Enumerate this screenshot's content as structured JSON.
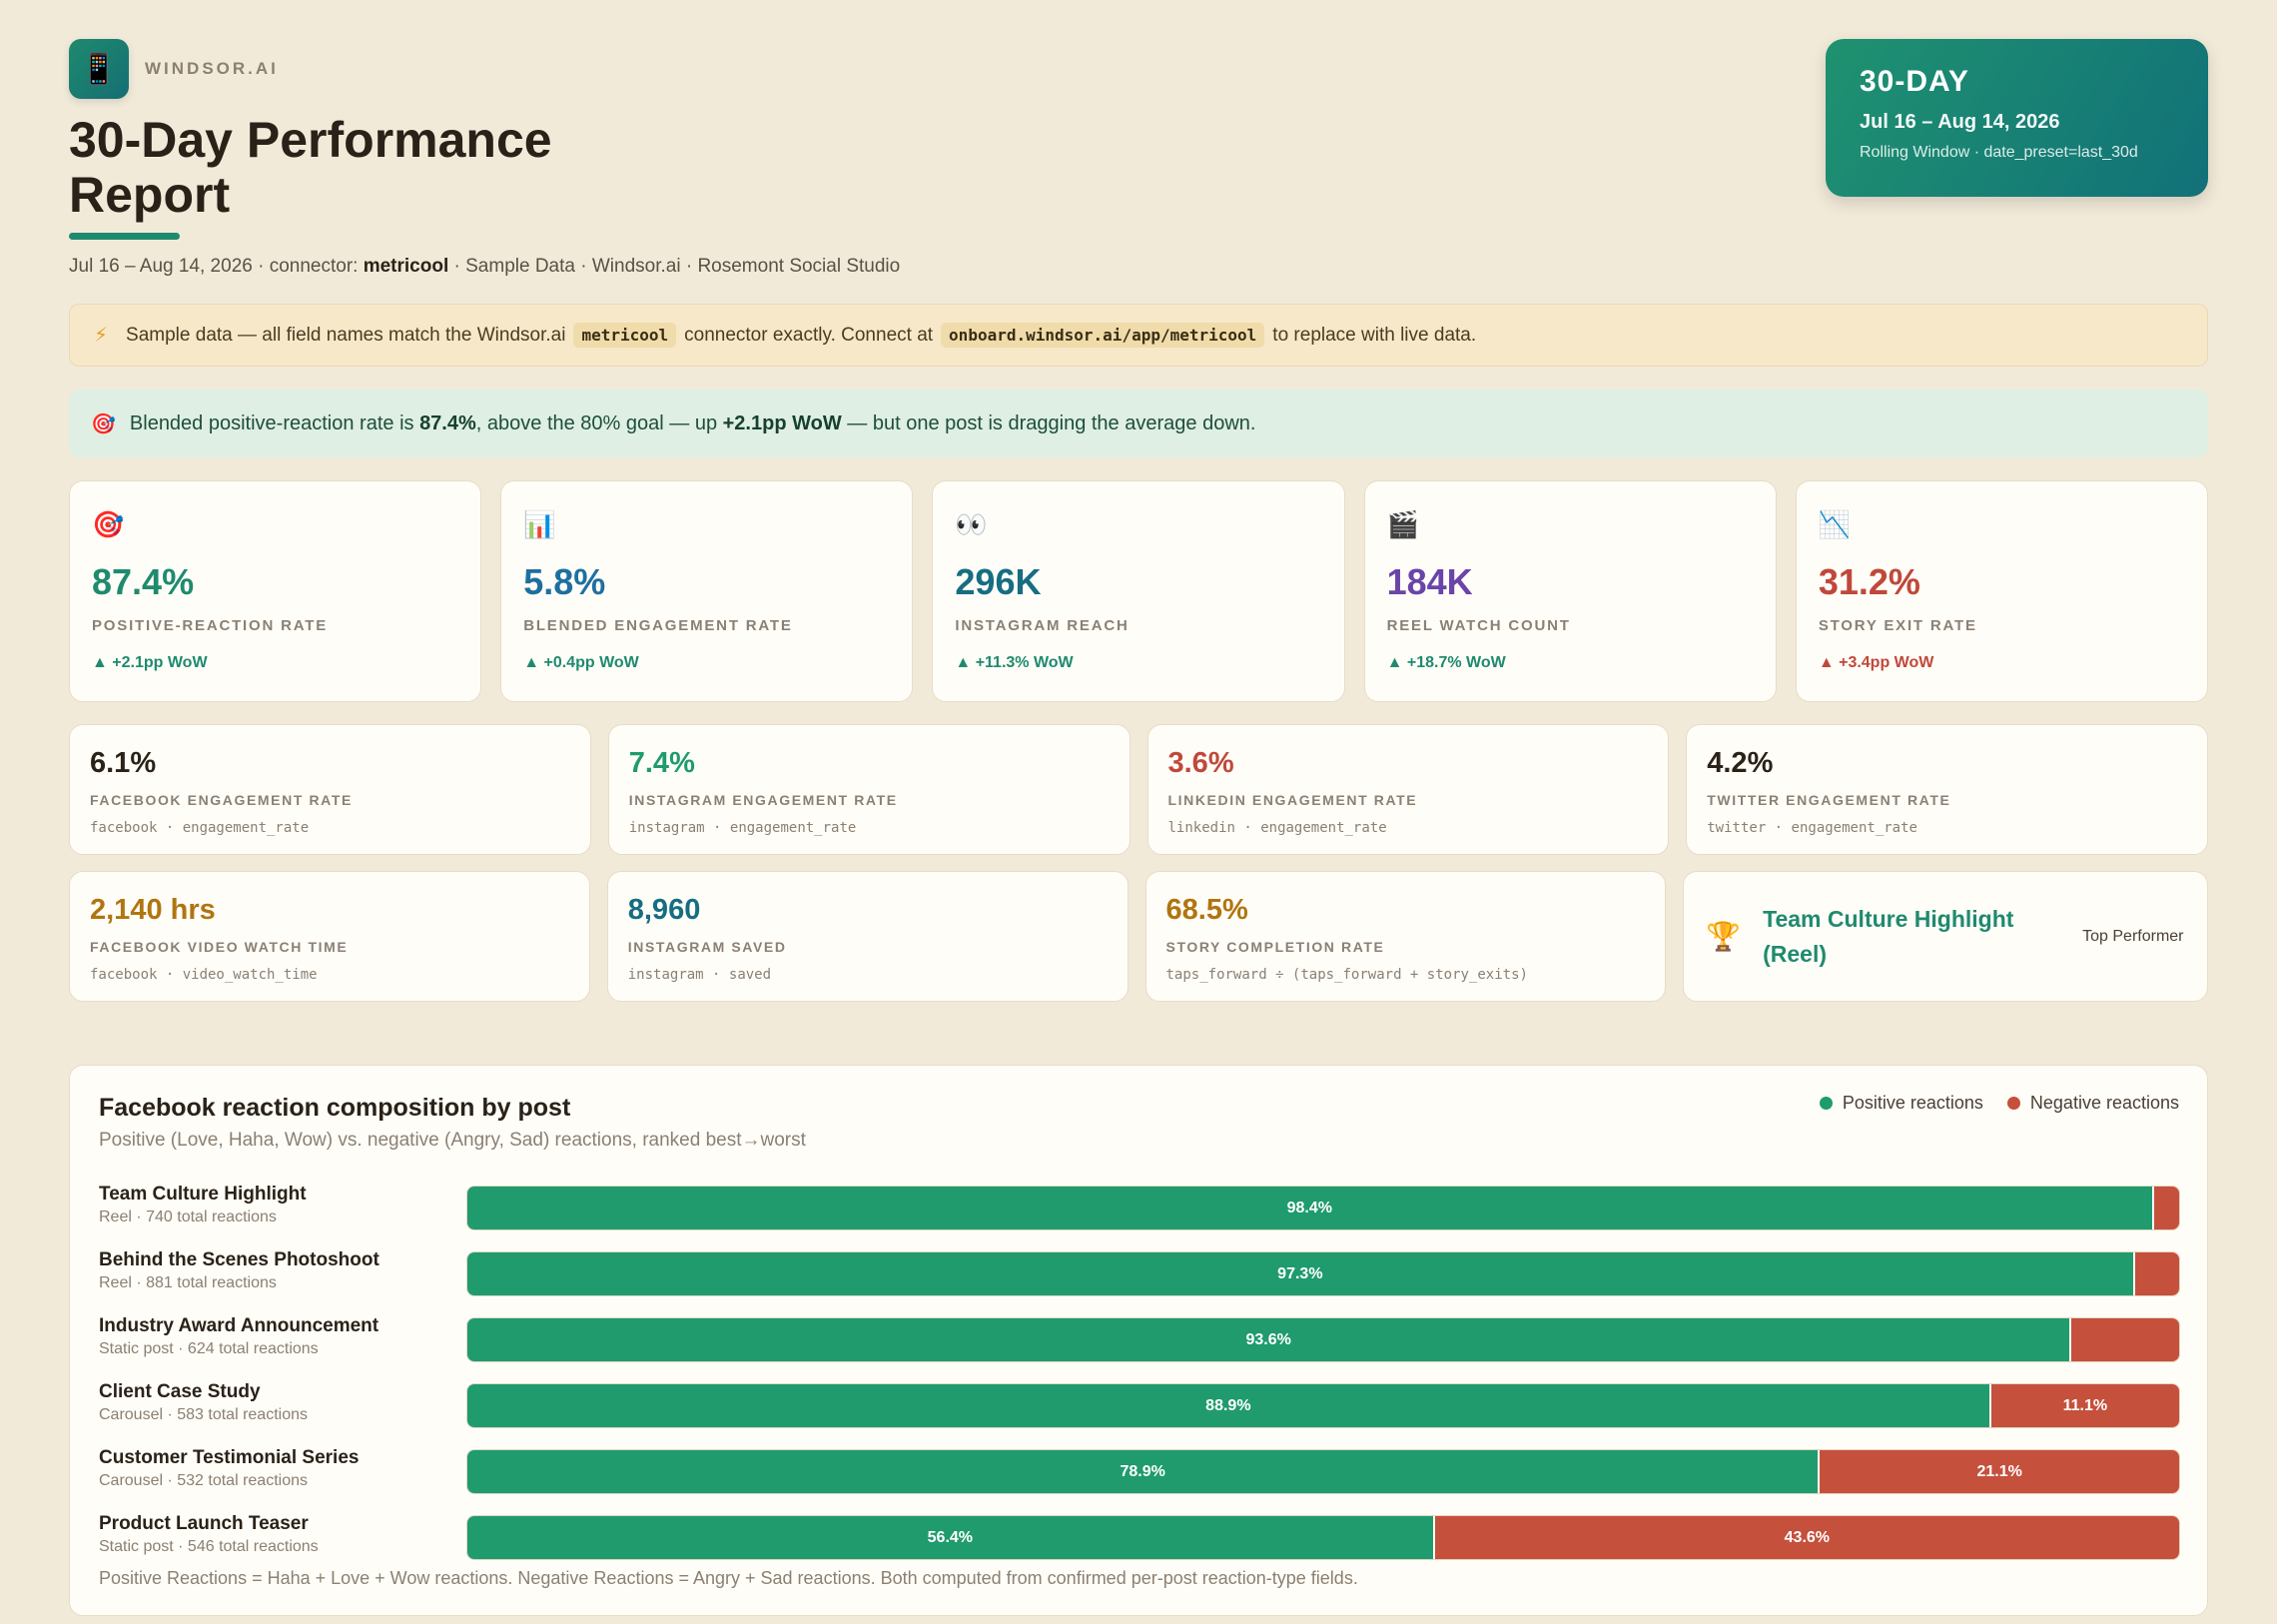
{
  "brand": {
    "name": "WINDSOR.AI",
    "logo_icon": "📱"
  },
  "header": {
    "title": "30-Day Performance Report",
    "subtitle_range": "Jul 16 – Aug 14, 2026",
    "subtitle_connector_label": " · connector: ",
    "subtitle_connector": "metricool",
    "subtitle_rest": " · Sample Data · Windsor.ai · Rosemont Social Studio"
  },
  "window_card": {
    "label": "30-DAY",
    "range": "Jul 16 – Aug 14, 2026",
    "meta": "Rolling Window · date_preset=last_30d"
  },
  "notice": {
    "icon": "⚡",
    "text_1": "Sample data — all field names match the Windsor.ai",
    "code_1": "metricool",
    "text_2": "connector exactly. Connect at",
    "code_2": "onboard.windsor.ai/app/metricool",
    "text_3": "to replace with live data."
  },
  "insight": {
    "icon": "🎯",
    "text_1": "Blended positive-reaction rate is ",
    "bold_1": "87.4%",
    "text_2": ", above the 80% goal — up ",
    "bold_2": "+2.1pp WoW",
    "text_3": " — but one post is dragging the average down."
  },
  "kpis": [
    {
      "icon": "🎯",
      "value": "87.4%",
      "label": "POSITIVE-REACTION RATE",
      "delta": "▲ +2.1pp WoW",
      "color": "#1f8a6e",
      "delta_color": "#1f8a6e"
    },
    {
      "icon": "📊",
      "value": "5.8%",
      "label": "BLENDED ENGAGEMENT RATE",
      "delta": "▲ +0.4pp WoW",
      "color": "#1e6fa0",
      "delta_color": "#1f8a6e"
    },
    {
      "icon": "👀",
      "value": "296K",
      "label": "INSTAGRAM REACH",
      "delta": "▲ +11.3% WoW",
      "color": "#176d82",
      "delta_color": "#1f8a6e"
    },
    {
      "icon": "🎬",
      "value": "184K",
      "label": "REEL WATCH COUNT",
      "delta": "▲ +18.7% WoW",
      "color": "#6a44a8",
      "delta_color": "#1f8a6e"
    },
    {
      "icon": "📉",
      "value": "31.2%",
      "label": "STORY EXIT RATE",
      "delta": "▲ +3.4pp WoW",
      "color": "#c0483a",
      "delta_color": "#c0483a"
    }
  ],
  "metrics_row1": [
    {
      "value": "6.1%",
      "label": "FACEBOOK ENGAGEMENT RATE",
      "field": "facebook · engagement_rate",
      "color": "#2a2218"
    },
    {
      "value": "7.4%",
      "label": "INSTAGRAM ENGAGEMENT RATE",
      "field": "instagram · engagement_rate",
      "color": "#1f9b6e"
    },
    {
      "value": "3.6%",
      "label": "LINKEDIN ENGAGEMENT RATE",
      "field": "linkedin · engagement_rate",
      "color": "#c0483a"
    },
    {
      "value": "4.2%",
      "label": "TWITTER ENGAGEMENT RATE",
      "field": "twitter · engagement_rate",
      "color": "#2a2218"
    }
  ],
  "metrics_row2": [
    {
      "value": "2,140 hrs",
      "label": "FACEBOOK VIDEO WATCH TIME",
      "field": "facebook · video_watch_time",
      "color": "#b07510"
    },
    {
      "value": "8,960",
      "label": "INSTAGRAM SAVED",
      "field": "instagram · saved",
      "color": "#176d82"
    },
    {
      "value": "68.5%",
      "label": "STORY COMPLETION RATE",
      "field": "taps_forward ÷ (taps_forward + story_exits)",
      "color": "#b07510"
    }
  ],
  "top_performer": {
    "icon": "🏆",
    "name": "Team Culture Highlight (Reel)",
    "badge": "Top Performer"
  },
  "chart_panel": {
    "title": "Facebook reaction composition by post",
    "subtitle": "Positive (Love, Haha, Wow) vs. negative (Angry, Sad) reactions, ranked best→worst",
    "footnote": "Positive Reactions = Haha + Love + Wow reactions. Negative Reactions = Angry + Sad reactions. Both computed from confirmed per-post reaction-type fields."
  },
  "colors": {
    "positive": "#1f9b6e",
    "negative": "#c5503c",
    "accent": "#1f8a6e"
  },
  "chart_data": {
    "type": "bar",
    "orientation": "horizontal-stacked-100",
    "categories": [
      "Team Culture Highlight",
      "Behind the Scenes Photoshoot",
      "Industry Award Announcement",
      "Client Case Study",
      "Customer Testimonial Series",
      "Product Launch Teaser"
    ],
    "meta": [
      "Reel · 740 total reactions",
      "Reel · 881 total reactions",
      "Static post · 624 total reactions",
      "Carousel · 583 total reactions",
      "Carousel · 532 total reactions",
      "Static post · 546 total reactions"
    ],
    "series": [
      {
        "name": "Positive reactions",
        "values": [
          98.4,
          97.3,
          93.6,
          88.9,
          78.9,
          56.4
        ],
        "labels": [
          "98.4%",
          "97.3%",
          "93.6%",
          "88.9%",
          "78.9%",
          "56.4%"
        ]
      },
      {
        "name": "Negative reactions",
        "values": [
          1.6,
          2.7,
          6.4,
          11.1,
          21.1,
          43.6
        ],
        "labels": [
          "",
          "",
          "",
          "11.1%",
          "21.1%",
          "43.6%"
        ]
      }
    ]
  }
}
